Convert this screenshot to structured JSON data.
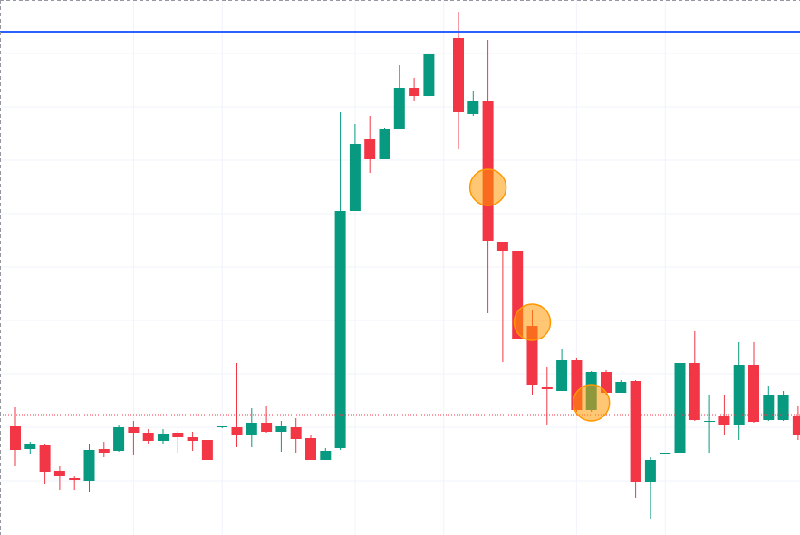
{
  "chart_data": {
    "type": "candlestick",
    "categories": [
      null,
      null,
      null,
      null,
      null,
      null,
      null,
      null,
      null,
      null,
      null,
      null,
      null,
      null,
      null,
      null,
      null,
      null,
      null,
      null,
      null,
      null,
      null,
      null,
      null,
      null,
      null,
      null,
      null,
      null,
      null,
      null,
      null,
      null,
      null,
      null,
      null,
      null,
      null,
      null,
      null,
      null,
      null,
      null,
      null,
      null,
      null,
      null,
      null,
      null,
      null,
      null,
      null,
      null
    ],
    "open": [
      120,
      95,
      99,
      71,
      63,
      60,
      95,
      93,
      119,
      113,
      104,
      113,
      108,
      105,
      119,
      119,
      111,
      124,
      114,
      119,
      107,
      83,
      96,
      358,
      437,
      415,
      449,
      494,
      485,
      null,
      549,
      465,
      479,
      324,
      314,
      231,
      163,
      159,
      193,
      138,
      180,
      157,
      170,
      59,
      90,
      91,
      190,
      125,
      131,
      122,
      188,
      127,
      127,
      131
    ],
    "high": [
      141,
      103,
      101,
      76,
      65,
      101,
      103,
      121,
      126,
      117,
      117,
      115,
      114,
      105,
      120,
      190,
      140,
      143,
      126,
      129,
      111,
      96,
      467,
      454,
      463,
      450,
      519,
      505,
      533,
      null,
      578,
      490,
      547,
      324,
      314,
      249,
      186,
      205,
      195,
      181,
      182,
      171,
      171,
      86,
      91,
      209,
      225,
      155,
      155,
      213,
      213,
      165,
      159,
      142
    ],
    "low": [
      76,
      89,
      56,
      50,
      50,
      48,
      86,
      92,
      88,
      101,
      101,
      91,
      93,
      83,
      118,
      97,
      97,
      113,
      92,
      91,
      83,
      83,
      94,
      358,
      400,
      415,
      448,
      479,
      484,
      null,
      426,
      463,
      245,
      191,
      216,
      155,
      121,
      159,
      136,
      136,
      155,
      157,
      41,
      18,
      90,
      41,
      126,
      91,
      111,
      105,
      124,
      126,
      126,
      105
    ],
    "close": [
      94,
      100,
      70,
      65,
      61,
      94,
      91,
      119,
      113,
      104,
      112,
      108,
      104,
      83,
      120,
      111,
      124,
      114,
      120,
      106,
      83,
      93,
      358,
      432,
      415,
      449,
      494,
      485,
      531,
      null,
      467,
      479,
      325,
      314,
      216,
      166,
      161,
      193,
      138,
      180,
      157,
      169,
      59,
      83,
      91,
      190,
      127,
      126,
      122,
      188,
      125,
      155,
      155,
      111
    ],
    "up_color": "#089981",
    "down_color": "#f23645",
    "ylim": [
      0,
      591
    ],
    "ygrid": [
      532,
      473,
      414,
      355,
      296,
      237,
      178,
      119,
      60
    ],
    "xgrid": [
      8,
      14,
      23,
      29,
      38,
      44
    ],
    "hlines": [
      {
        "value": 556,
        "color": "#2962ff",
        "style": "solid"
      },
      {
        "value": 133,
        "color": "#f23645",
        "style": "dotted"
      }
    ],
    "markers": [
      {
        "index": 32,
        "value": 384
      },
      {
        "index": 35,
        "value": 235
      },
      {
        "index": 39,
        "value": 146
      }
    ],
    "marker_color": "#ff9800",
    "grid": true
  }
}
